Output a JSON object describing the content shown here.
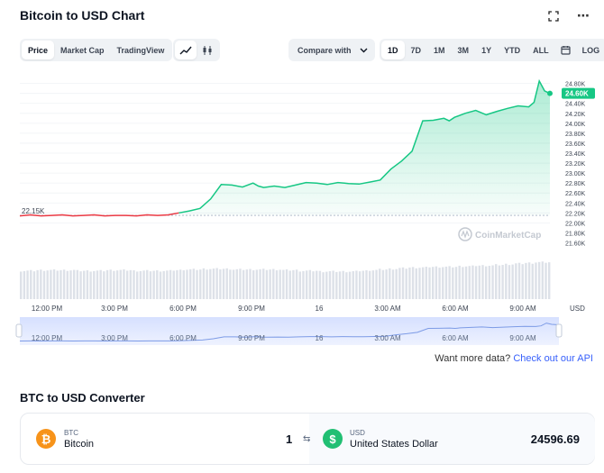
{
  "header": {
    "title": "Bitcoin to USD Chart",
    "expand_icon": "expand-icon",
    "more_icon": "⋯"
  },
  "tabs": [
    {
      "label": "Price",
      "active": true
    },
    {
      "label": "Market Cap",
      "active": false
    },
    {
      "label": "TradingView",
      "active": false
    }
  ],
  "chart_types": [
    {
      "icon": "line-chart-icon",
      "active": true
    },
    {
      "icon": "candlestick-icon",
      "active": false
    }
  ],
  "compare": {
    "label": "Compare with",
    "icon": "chevron-down-icon"
  },
  "ranges": [
    {
      "label": "1D",
      "active": true
    },
    {
      "label": "7D",
      "active": false
    },
    {
      "label": "1M",
      "active": false
    },
    {
      "label": "3M",
      "active": false
    },
    {
      "label": "1Y",
      "active": false
    },
    {
      "label": "YTD",
      "active": false
    },
    {
      "label": "ALL",
      "active": false
    }
  ],
  "calendar_icon": "calendar-icon",
  "log_label": "LOG",
  "chart_data": {
    "type": "line",
    "title": "",
    "xlabel": "",
    "ylabel": "USD",
    "y_ticks": [
      "24.80K",
      "24.60K",
      "24.40K",
      "24.20K",
      "24.00K",
      "23.80K",
      "23.60K",
      "23.40K",
      "23.20K",
      "23.00K",
      "22.80K",
      "22.60K",
      "22.40K",
      "22.20K",
      "22.00K",
      "21.80K",
      "21.60K"
    ],
    "ylim": [
      21500,
      24920
    ],
    "x_ticks": [
      "12:00 PM",
      "3:00 PM",
      "6:00 PM",
      "9:00 PM",
      "16",
      "3:00 AM",
      "6:00 AM",
      "9:00 AM"
    ],
    "open_price_label": "22.15K",
    "current_price_label": "24.60K",
    "open_price": 22150,
    "current_price": 24600,
    "watermark": "CoinMarketCap",
    "x": [
      0,
      0.02,
      0.04,
      0.06,
      0.08,
      0.1,
      0.12,
      0.14,
      0.16,
      0.18,
      0.2,
      0.22,
      0.24,
      0.26,
      0.28,
      0.3,
      0.32,
      0.34,
      0.36,
      0.38,
      0.4,
      0.42,
      0.44,
      0.45,
      0.46,
      0.48,
      0.5,
      0.52,
      0.54,
      0.56,
      0.58,
      0.6,
      0.62,
      0.64,
      0.66,
      0.68,
      0.7,
      0.72,
      0.74,
      0.76,
      0.78,
      0.8,
      0.81,
      0.82,
      0.84,
      0.86,
      0.88,
      0.9,
      0.92,
      0.94,
      0.96,
      0.97,
      0.98,
      0.99,
      1.0
    ],
    "values": [
      22140,
      22160,
      22140,
      22150,
      22160,
      22140,
      22150,
      22160,
      22140,
      22150,
      22150,
      22140,
      22160,
      22150,
      22160,
      22200,
      22240,
      22290,
      22480,
      22770,
      22760,
      22720,
      22800,
      22740,
      22710,
      22740,
      22710,
      22760,
      22810,
      22800,
      22770,
      22810,
      22790,
      22780,
      22820,
      22860,
      23080,
      23240,
      23440,
      24050,
      24060,
      24100,
      24050,
      24120,
      24200,
      24260,
      24170,
      24240,
      24300,
      24350,
      24330,
      24420,
      24850,
      24650,
      24600
    ],
    "volume": [
      0.42,
      0.42,
      0.43,
      0.43,
      0.43,
      0.43,
      0.42,
      0.42,
      0.42,
      0.43,
      0.43,
      0.43,
      0.42,
      0.42,
      0.42,
      0.42,
      0.43,
      0.44,
      0.44,
      0.45,
      0.45,
      0.45,
      0.44,
      0.44,
      0.44,
      0.44,
      0.44,
      0.43,
      0.43,
      0.42,
      0.42,
      0.41,
      0.41,
      0.41,
      0.41,
      0.42,
      0.43,
      0.44,
      0.45,
      0.46,
      0.47,
      0.47,
      0.48,
      0.48,
      0.48,
      0.49,
      0.49,
      0.5,
      0.5,
      0.51,
      0.52,
      0.53,
      0.54,
      0.55,
      0.55
    ],
    "navigator_ticks": [
      "12:00 PM",
      "3:00 PM",
      "6:00 PM",
      "9:00 PM",
      "16",
      "3:00 AM",
      "6:00 AM",
      "9:00 AM"
    ],
    "line_up_color": "#16c784",
    "line_down_color": "#ea3943"
  },
  "more_data": {
    "prefix": "Want more data?",
    "link": "Check out our API"
  },
  "converter": {
    "title": "BTC to USD Converter",
    "from": {
      "symbol": "BTC",
      "name": "Bitcoin",
      "amount": "1",
      "icon": "bitcoin-icon"
    },
    "swap_icon": "swap-icon",
    "to": {
      "symbol": "USD",
      "name": "United States Dollar",
      "amount": "24596.69",
      "icon": "dollar-icon"
    }
  }
}
